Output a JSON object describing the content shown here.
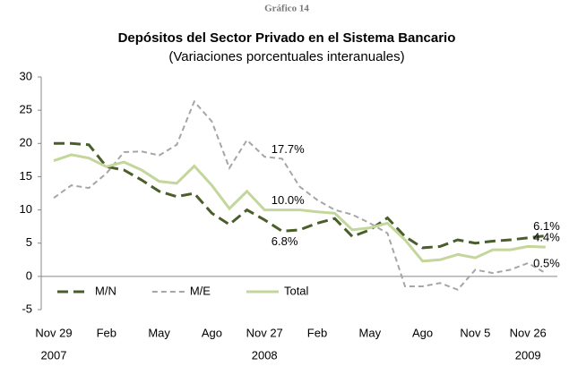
{
  "chart_data": {
    "type": "line",
    "supertitle": "Gráfico 14",
    "title": "Depósitos del Sector Privado en el Sistema Bancario",
    "subtitle": "(Variaciones porcentuales interanuales)",
    "categories": [
      "Nov 29",
      null,
      null,
      "Feb",
      null,
      null,
      "May",
      null,
      null,
      "Ago",
      null,
      null,
      "Nov 27",
      null,
      null,
      "Feb",
      null,
      null,
      "May",
      null,
      null,
      "Ago",
      null,
      null,
      "Nov 5",
      null,
      null,
      "Nov 26",
      null
    ],
    "years": [
      "2007",
      null,
      null,
      null,
      null,
      null,
      null,
      null,
      null,
      null,
      null,
      null,
      "2008",
      null,
      null,
      null,
      null,
      null,
      null,
      null,
      null,
      null,
      null,
      null,
      null,
      null,
      null,
      "2009",
      null
    ],
    "series": [
      {
        "name": "M/N",
        "color": "#4a5e2a",
        "dash": "12 6",
        "width": 3,
        "values": [
          20,
          20,
          19.8,
          16.5,
          16,
          14.5,
          12.8,
          12,
          12.5,
          9.5,
          7.8,
          10,
          8.5,
          6.8,
          7,
          8,
          8.7,
          6,
          7,
          8.8,
          6,
          4.3,
          4.5,
          5.5,
          5,
          5.3,
          5.5,
          5.8,
          6.1
        ],
        "value_labels": [
          null,
          null,
          null,
          null,
          null,
          null,
          null,
          null,
          null,
          null,
          null,
          null,
          null,
          "6.8%",
          null,
          null,
          null,
          null,
          null,
          null,
          null,
          null,
          null,
          null,
          null,
          null,
          null,
          null,
          "6.1%"
        ]
      },
      {
        "name": "M/E",
        "color": "#a6a6a6",
        "dash": "6 4",
        "width": 2,
        "values": [
          11.8,
          13.7,
          13.3,
          15.5,
          18.7,
          18.8,
          18.2,
          19.8,
          26.3,
          23.3,
          16.3,
          20.5,
          18,
          17.7,
          13.5,
          11.5,
          10,
          9.3,
          8,
          6.5,
          -1.5,
          -1.5,
          -1,
          -2,
          1,
          0.5,
          1,
          2,
          0.5
        ],
        "value_labels": [
          null,
          null,
          null,
          null,
          null,
          null,
          null,
          null,
          null,
          null,
          null,
          null,
          null,
          "17.7%",
          null,
          null,
          null,
          null,
          null,
          null,
          null,
          null,
          null,
          null,
          null,
          null,
          null,
          null,
          "0.5%"
        ]
      },
      {
        "name": "Total",
        "color": "#c3d69b",
        "dash": null,
        "width": 3,
        "values": [
          17.4,
          18.3,
          17.8,
          16.5,
          17.2,
          16,
          14.3,
          14,
          16.6,
          13.7,
          10.2,
          12.8,
          10,
          10,
          10,
          9.7,
          9.5,
          7,
          7.3,
          8,
          5.5,
          2.3,
          2.5,
          3.3,
          2.8,
          4,
          4,
          4.5,
          4.4
        ],
        "value_labels": [
          null,
          null,
          null,
          null,
          null,
          null,
          null,
          null,
          null,
          null,
          null,
          null,
          null,
          "10.0%",
          null,
          null,
          null,
          null,
          null,
          null,
          null,
          null,
          null,
          null,
          null,
          null,
          null,
          null,
          "4.4%"
        ]
      }
    ],
    "ylim": [
      -5,
      30
    ],
    "yticks": [
      -5,
      0,
      5,
      10,
      15,
      20,
      25,
      30
    ],
    "grid": false,
    "legend": "lower left"
  }
}
